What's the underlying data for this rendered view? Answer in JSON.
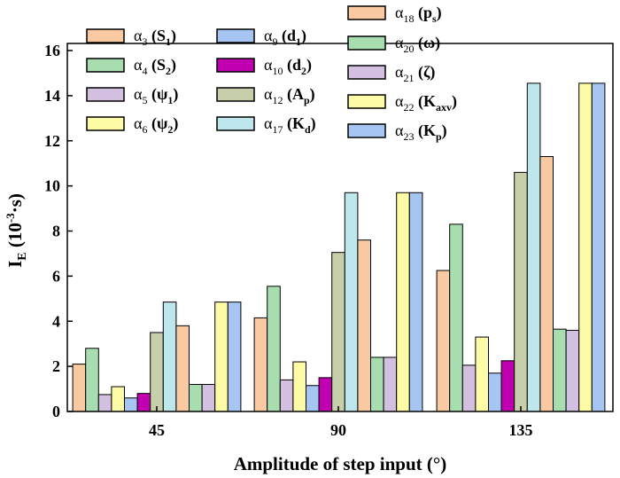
{
  "chart_data": {
    "type": "bar",
    "title": "",
    "xlabel": "Amplitude of step input (°)",
    "ylabel": {
      "main": "I",
      "sub": "E",
      "unit_open": " (10",
      "sup": "-3",
      "unit_close": "·s)"
    },
    "ylim": [
      0,
      16
    ],
    "yticks": [
      0,
      2,
      4,
      6,
      8,
      10,
      12,
      14,
      16
    ],
    "categories": [
      "45",
      "90",
      "135"
    ],
    "legend_placement": "top",
    "series": [
      {
        "name": "α",
        "sub": "3",
        "param": "S",
        "psub": "1",
        "color": "#f9c9a2",
        "values": [
          2.1,
          4.15,
          6.25
        ]
      },
      {
        "name": "α",
        "sub": "4",
        "param": "S",
        "psub": "2",
        "color": "#a8deaf",
        "values": [
          2.8,
          5.55,
          8.3
        ]
      },
      {
        "name": "α",
        "sub": "5",
        "param": "ψ",
        "psub": "1",
        "color": "#d3bfdf",
        "values": [
          0.75,
          1.4,
          2.05
        ]
      },
      {
        "name": "α",
        "sub": "6",
        "param": "ψ",
        "psub": "2",
        "color": "#fdfba5",
        "values": [
          1.1,
          2.2,
          3.3
        ]
      },
      {
        "name": "α",
        "sub": "9",
        "param": "d",
        "psub": "1",
        "color": "#a7c5f3",
        "values": [
          0.6,
          1.15,
          1.7
        ]
      },
      {
        "name": "α",
        "sub": "10",
        "param": "d",
        "psub": "2",
        "color": "#c000b0",
        "values": [
          0.8,
          1.5,
          2.25
        ]
      },
      {
        "name": "α",
        "sub": "12",
        "param": "A",
        "psub": "p",
        "color": "#c6cfa9",
        "values": [
          3.5,
          7.05,
          10.6
        ]
      },
      {
        "name": "α",
        "sub": "17",
        "param": "K",
        "psub": "d",
        "color": "#bde7ec",
        "values": [
          4.85,
          9.7,
          14.55
        ]
      },
      {
        "name": "α",
        "sub": "18",
        "param": "p",
        "psub": "s",
        "color": "#f9c9a2",
        "values": [
          3.8,
          7.6,
          11.3
        ]
      },
      {
        "name": "α",
        "sub": "20",
        "param": "ω",
        "psub": "",
        "color": "#a8deaf",
        "values": [
          1.2,
          2.4,
          3.65
        ]
      },
      {
        "name": "α",
        "sub": "21",
        "param": "ζ",
        "psub": "",
        "color": "#d3bfdf",
        "values": [
          1.2,
          2.4,
          3.6
        ]
      },
      {
        "name": "α",
        "sub": "22",
        "param": "K",
        "psub": "axv",
        "color": "#fdfba5",
        "values": [
          4.85,
          9.7,
          14.55
        ]
      },
      {
        "name": "α",
        "sub": "23",
        "param": "K",
        "psub": "p",
        "color": "#a7c5f3",
        "values": [
          4.85,
          9.7,
          14.55
        ]
      }
    ]
  }
}
